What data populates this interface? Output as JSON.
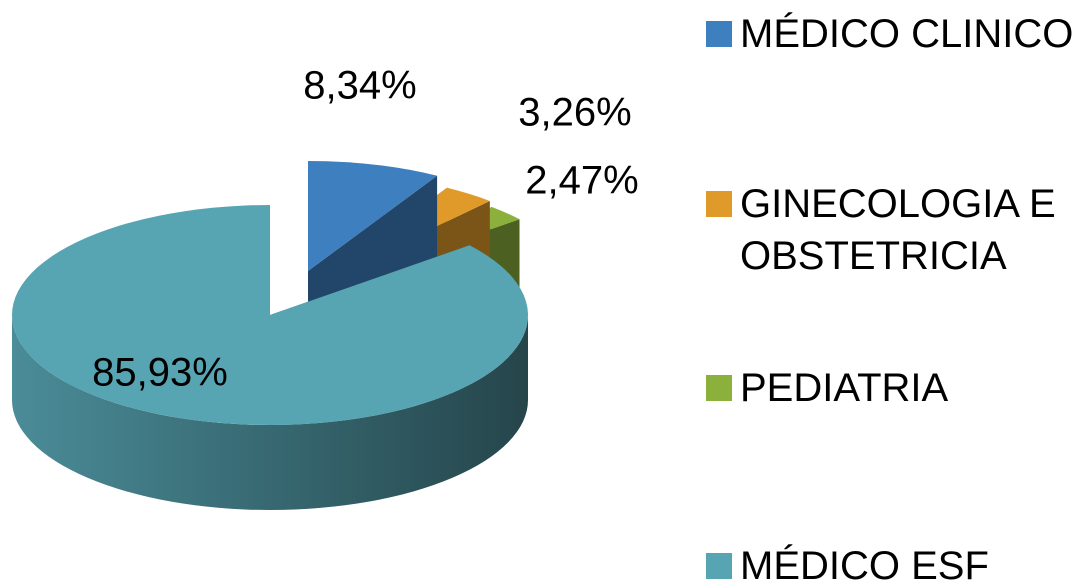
{
  "chart_data": {
    "type": "pie",
    "categories": [
      "MÉDICO CLINICO",
      "GINECOLOGIA E OBSTETRICIA",
      "PEDIATRIA",
      "MÉDICO ESF"
    ],
    "values": [
      8.34,
      3.26,
      2.47,
      85.93
    ],
    "value_labels": [
      "8,34%",
      "3,26%",
      "2,47%",
      "85,93%"
    ],
    "colors": [
      "#3d7fbf",
      "#e09a2a",
      "#8bb03c",
      "#57a5b3"
    ],
    "legend": "right"
  }
}
